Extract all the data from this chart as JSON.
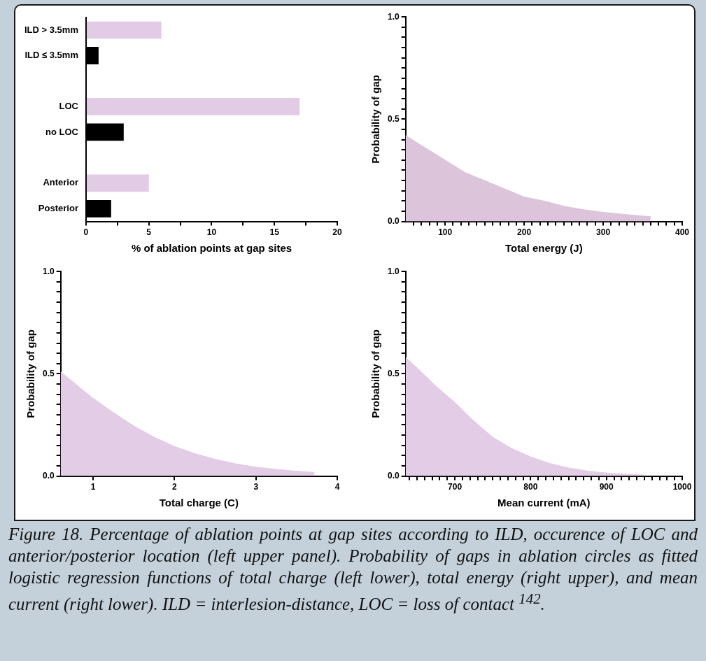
{
  "chart_data": [
    {
      "type": "bar",
      "orientation": "horizontal",
      "categories": [
        "ILD > 3.5mm",
        "ILD ≤ 3.5mm",
        null,
        "LOC",
        "no LOC",
        null,
        "Anterior",
        "Posterior"
      ],
      "values": [
        6,
        1,
        null,
        17,
        3,
        null,
        5,
        2
      ],
      "colors": [
        "#e2cbe5",
        "#000000",
        "#ffffff",
        "#e2cbe5",
        "#000000",
        "#ffffff",
        "#e2cbe5",
        "#000000"
      ],
      "xlim": [
        0,
        20
      ],
      "xticks": [
        0,
        {
          "value": 2.5,
          "label": null
        },
        5,
        {
          "value": 7.5,
          "label": null
        },
        10,
        {
          "value": 12.5,
          "label": null
        },
        15,
        {
          "value": 17.5,
          "label": null
        },
        20
      ],
      "xlabel": "% of ablation points at gap sites",
      "legend": false,
      "grid": false,
      "annotations": [
        "Figure 18. Percentage of ablation points at gap sites according to ILD, occurence of LOC and anterior/posterior location (left upper panel). Probability of gaps in ablation circles as fitted logistic regression functions of total charge (left lower), total energy (right upper), and mean current (right lower). ILD = interlesion-distance, LOC = loss of contact $^{142}$."
      ]
    },
    {
      "type": "area",
      "color": "#dcc5db",
      "x": [
        50,
        75,
        100,
        125,
        150,
        175,
        200,
        225,
        250,
        275,
        300,
        325,
        350,
        360
      ],
      "values": [
        0.42,
        0.36,
        0.3,
        0.24,
        0.2,
        0.16,
        0.12,
        0.1,
        0.075,
        0.058,
        0.045,
        0.035,
        0.027,
        0.024
      ],
      "xlim": [
        50,
        400
      ],
      "xticks": [
        {
          "value": 60,
          "label": null
        },
        {
          "value": 70,
          "label": null
        },
        {
          "value": 80,
          "label": null
        },
        {
          "value": 90,
          "label": null
        },
        100,
        {
          "value": 110,
          "label": null
        },
        {
          "value": 120,
          "label": null
        },
        {
          "value": 130,
          "label": null
        },
        {
          "value": 140,
          "label": null
        },
        {
          "value": 150,
          "label": null
        },
        {
          "value": 160,
          "label": null
        },
        {
          "value": 170,
          "label": null
        },
        {
          "value": 180,
          "label": null
        },
        {
          "value": 190,
          "label": null
        },
        200,
        {
          "value": 210,
          "label": null
        },
        {
          "value": 220,
          "label": null
        },
        {
          "value": 230,
          "label": null
        },
        {
          "value": 240,
          "label": null
        },
        {
          "value": 250,
          "label": null
        },
        {
          "value": 260,
          "label": null
        },
        {
          "value": 270,
          "label": null
        },
        {
          "value": 280,
          "label": null
        },
        {
          "value": 290,
          "label": null
        },
        300,
        {
          "value": 310,
          "label": null
        },
        {
          "value": 320,
          "label": null
        },
        {
          "value": 330,
          "label": null
        },
        {
          "value": 340,
          "label": null
        },
        {
          "value": 350,
          "label": null
        },
        {
          "value": 360,
          "label": null
        },
        {
          "value": 370,
          "label": null
        },
        {
          "value": 380,
          "label": null
        },
        {
          "value": 390,
          "label": null
        },
        400
      ],
      "ylim": [
        0,
        1
      ],
      "yticks": [
        {
          "value": 0,
          "label": "0.0"
        },
        {
          "value": 0.05,
          "label": null
        },
        {
          "value": 0.1,
          "label": null
        },
        {
          "value": 0.15,
          "label": null
        },
        {
          "value": 0.2,
          "label": null
        },
        {
          "value": 0.25,
          "label": null
        },
        {
          "value": 0.3,
          "label": null
        },
        {
          "value": 0.35,
          "label": null
        },
        {
          "value": 0.4,
          "label": null
        },
        {
          "value": 0.45,
          "label": null
        },
        {
          "value": 0.5,
          "label": "0.5"
        },
        {
          "value": 0.55,
          "label": null
        },
        {
          "value": 0.6,
          "label": null
        },
        {
          "value": 0.65,
          "label": null
        },
        {
          "value": 0.7,
          "label": null
        },
        {
          "value": 0.75,
          "label": null
        },
        {
          "value": 0.8,
          "label": null
        },
        {
          "value": 0.85,
          "label": null
        },
        {
          "value": 0.9,
          "label": null
        },
        {
          "value": 0.95,
          "label": null
        },
        {
          "value": 1,
          "label": "1.0"
        }
      ],
      "xlabel": "Total energy (J)",
      "ylabel": "Probability of gap",
      "legend": false,
      "grid": false
    },
    {
      "type": "area",
      "color": "#e3cce6",
      "x": [
        0.6,
        0.8,
        1,
        1.25,
        1.5,
        1.75,
        2,
        2.25,
        2.5,
        2.75,
        3,
        3.25,
        3.5,
        3.72
      ],
      "values": [
        0.51,
        0.445,
        0.38,
        0.31,
        0.245,
        0.19,
        0.145,
        0.11,
        0.082,
        0.06,
        0.044,
        0.033,
        0.024,
        0.018
      ],
      "xlim": [
        0.6,
        4
      ],
      "xticks": [
        1,
        2,
        3,
        4
      ],
      "ylim": [
        0,
        1
      ],
      "yticks": [
        {
          "value": 0,
          "label": "0.0"
        },
        {
          "value": 0.05,
          "label": null
        },
        {
          "value": 0.1,
          "label": null
        },
        {
          "value": 0.15,
          "label": null
        },
        {
          "value": 0.2,
          "label": null
        },
        {
          "value": 0.25,
          "label": null
        },
        {
          "value": 0.3,
          "label": null
        },
        {
          "value": 0.35,
          "label": null
        },
        {
          "value": 0.4,
          "label": null
        },
        {
          "value": 0.45,
          "label": null
        },
        {
          "value": 0.5,
          "label": "0.5"
        },
        {
          "value": 0.55,
          "label": null
        },
        {
          "value": 0.6,
          "label": null
        },
        {
          "value": 0.65,
          "label": null
        },
        {
          "value": 0.7,
          "label": null
        },
        {
          "value": 0.75,
          "label": null
        },
        {
          "value": 0.8,
          "label": null
        },
        {
          "value": 0.85,
          "label": null
        },
        {
          "value": 0.9,
          "label": null
        },
        {
          "value": 0.95,
          "label": null
        },
        {
          "value": 1,
          "label": "1.0"
        }
      ],
      "xlabel": "Total charge (C)",
      "ylabel": "Probability of gap",
      "legend": false,
      "grid": false
    },
    {
      "type": "area",
      "color": "#e3cce6",
      "x": [
        635,
        650,
        675,
        700,
        725,
        750,
        775,
        800,
        825,
        850,
        875,
        900,
        925,
        950
      ],
      "values": [
        0.58,
        0.53,
        0.44,
        0.36,
        0.27,
        0.19,
        0.135,
        0.094,
        0.062,
        0.04,
        0.025,
        0.015,
        0.009,
        0.005
      ],
      "xlim": [
        635,
        1000
      ],
      "xticks": [
        {
          "value": 640,
          "label": null
        },
        {
          "value": 650,
          "label": null
        },
        {
          "value": 660,
          "label": null
        },
        {
          "value": 670,
          "label": null
        },
        {
          "value": 680,
          "label": null
        },
        {
          "value": 690,
          "label": null
        },
        700,
        {
          "value": 710,
          "label": null
        },
        {
          "value": 720,
          "label": null
        },
        {
          "value": 730,
          "label": null
        },
        {
          "value": 740,
          "label": null
        },
        {
          "value": 750,
          "label": null
        },
        {
          "value": 760,
          "label": null
        },
        {
          "value": 770,
          "label": null
        },
        {
          "value": 780,
          "label": null
        },
        {
          "value": 790,
          "label": null
        },
        800,
        {
          "value": 810,
          "label": null
        },
        {
          "value": 820,
          "label": null
        },
        {
          "value": 830,
          "label": null
        },
        {
          "value": 840,
          "label": null
        },
        {
          "value": 850,
          "label": null
        },
        {
          "value": 860,
          "label": null
        },
        {
          "value": 870,
          "label": null
        },
        {
          "value": 880,
          "label": null
        },
        {
          "value": 890,
          "label": null
        },
        900,
        {
          "value": 910,
          "label": null
        },
        {
          "value": 920,
          "label": null
        },
        {
          "value": 930,
          "label": null
        },
        {
          "value": 940,
          "label": null
        },
        {
          "value": 950,
          "label": null
        },
        {
          "value": 960,
          "label": null
        },
        {
          "value": 970,
          "label": null
        },
        {
          "value": 980,
          "label": null
        },
        {
          "value": 990,
          "label": null
        },
        1000
      ],
      "ylim": [
        0,
        1
      ],
      "yticks": [
        {
          "value": 0,
          "label": "0.0"
        },
        {
          "value": 0.05,
          "label": null
        },
        {
          "value": 0.1,
          "label": null
        },
        {
          "value": 0.15,
          "label": null
        },
        {
          "value": 0.2,
          "label": null
        },
        {
          "value": 0.25,
          "label": null
        },
        {
          "value": 0.3,
          "label": null
        },
        {
          "value": 0.35,
          "label": null
        },
        {
          "value": 0.4,
          "label": null
        },
        {
          "value": 0.45,
          "label": null
        },
        {
          "value": 0.5,
          "label": "0.5"
        },
        {
          "value": 0.55,
          "label": null
        },
        {
          "value": 0.6,
          "label": null
        },
        {
          "value": 0.65,
          "label": null
        },
        {
          "value": 0.7,
          "label": null
        },
        {
          "value": 0.75,
          "label": null
        },
        {
          "value": 0.8,
          "label": null
        },
        {
          "value": 0.85,
          "label": null
        },
        {
          "value": 0.9,
          "label": null
        },
        {
          "value": 0.95,
          "label": null
        },
        {
          "value": 1,
          "label": "1.0"
        }
      ],
      "xlabel": "Mean current (mA)",
      "ylabel": "Probability of gap",
      "legend": false,
      "grid": false
    }
  ]
}
